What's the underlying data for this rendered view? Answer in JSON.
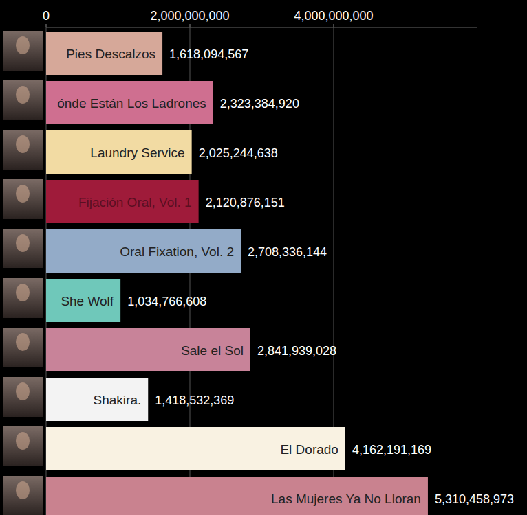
{
  "chart_data": {
    "type": "bar",
    "orientation": "horizontal",
    "categories": [
      "Pies Descalzos",
      "ónde Están Los Ladrones",
      "Laundry Service",
      "Fijación Oral, Vol. 1",
      "Oral Fixation, Vol. 2",
      "She Wolf",
      "Sale el Sol",
      "Shakira.",
      "El Dorado",
      "Las Mujeres Ya No Lloran"
    ],
    "values": [
      1618094567,
      2323384920,
      2025244638,
      2120876151,
      2708336144,
      1034766608,
      2841939028,
      1418532369,
      4162191169,
      5310458973
    ],
    "value_labels": [
      "1,618,094,567",
      "2,323,384,920",
      "2,025,244,638",
      "2,120,876,151",
      "2,708,336,144",
      "1,034,766,608",
      "2,841,939,028",
      "1,418,532,369",
      "4,162,191,169",
      "5,310,458,973"
    ],
    "colors": [
      "#d6a899",
      "#cf6f90",
      "#f2dba3",
      "#9f1b3a",
      "#93abc8",
      "#6fc8ba",
      "#c88399",
      "#f3f3f3",
      "#f9f2e2",
      "#c9828f"
    ],
    "xlim": [
      0,
      6000000000
    ],
    "xticks": [
      0,
      {
        "value": 2000000000,
        "label": "2,000,000,000"
      },
      {
        "value": 4000000000,
        "label": "4,000,000,000"
      }
    ],
    "grid": true,
    "data_labels": true
  }
}
